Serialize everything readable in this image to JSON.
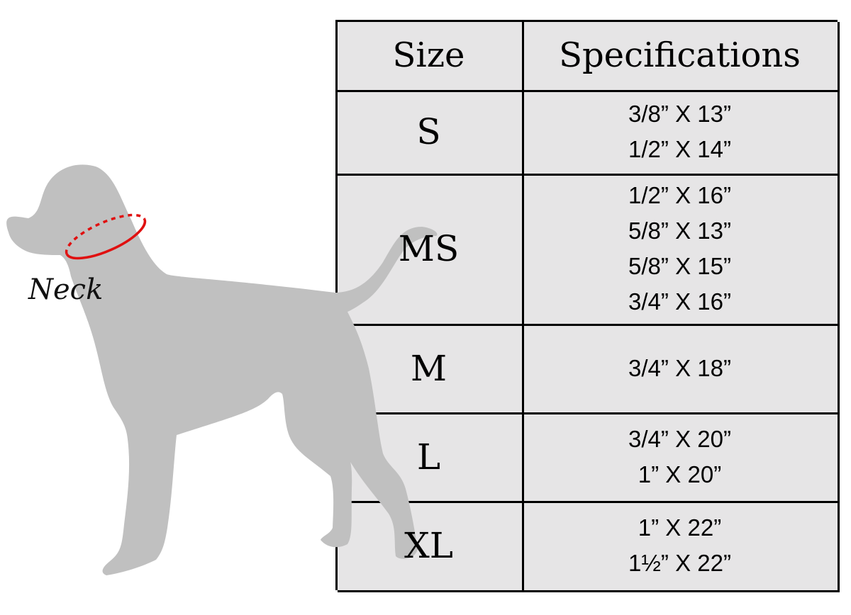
{
  "illustration": {
    "label": "Neck",
    "silhouette_color": "#c0c0c0",
    "collar_color": "#e01010"
  },
  "table": {
    "headers": {
      "size": "Size",
      "specs": "Specifications"
    },
    "rows": [
      {
        "size": "S",
        "specs": [
          "3/8” X 13”",
          "1/2” X 14”"
        ]
      },
      {
        "size": "MS",
        "specs": [
          "1/2” X 16”",
          "5/8” X 13”",
          "5/8” X 15”",
          "3/4” X 16”"
        ]
      },
      {
        "size": "M",
        "specs": [
          "3/4” X 18”"
        ]
      },
      {
        "size": "L",
        "specs": [
          "3/4” X 20”",
          "1” X 20”"
        ]
      },
      {
        "size": "XL",
        "specs": [
          "1” X 22”",
          "1½” X 22”"
        ]
      }
    ]
  }
}
